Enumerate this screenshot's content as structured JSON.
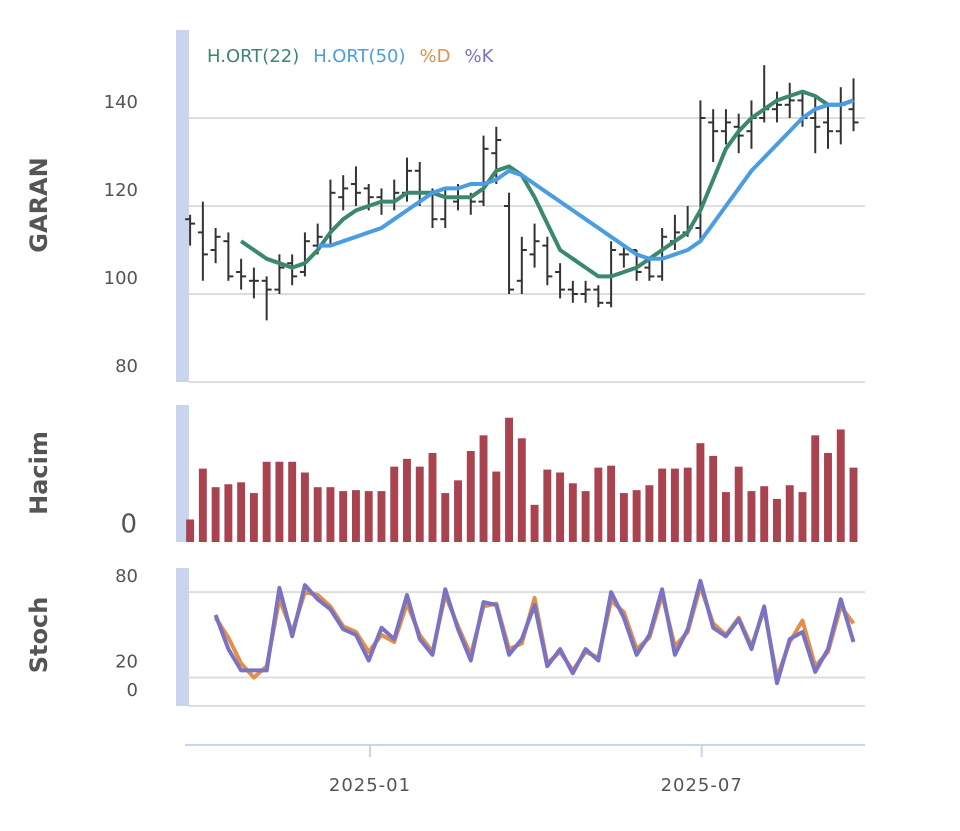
{
  "chart_data": [
    {
      "type": "ohlc",
      "ylabel": "GARAN",
      "color": "#333333",
      "xlim": [
        -0.4,
        52.9
      ],
      "ylim": [
        80,
        160
      ],
      "yticks": [
        80,
        100,
        120,
        140
      ],
      "grid": true,
      "open": [
        117,
        114,
        110,
        112,
        105,
        103,
        103,
        101,
        107,
        105,
        111,
        113,
        122,
        125,
        124,
        122,
        121,
        123,
        128,
        123,
        117,
        121,
        122,
        121,
        132,
        120,
        103,
        109,
        111,
        105,
        101,
        100,
        101,
        98,
        109,
        110,
        106,
        104,
        112,
        114,
        115,
        139,
        137,
        138,
        137,
        140,
        142,
        143,
        144,
        140,
        139,
        137,
        142
      ],
      "high": [
        118,
        121,
        115,
        114,
        108,
        106,
        104,
        109,
        109,
        114,
        116,
        126,
        127,
        129,
        125,
        124,
        126,
        131,
        130,
        124,
        124,
        125,
        123,
        136,
        138,
        123,
        113,
        116,
        113,
        107,
        103,
        103,
        102,
        112,
        111,
        110,
        108,
        115,
        118,
        120,
        144,
        142,
        142,
        141,
        144,
        152,
        146,
        148,
        146,
        145,
        143,
        147,
        149
      ],
      "low": [
        111,
        103,
        107,
        103,
        101,
        99,
        94,
        100,
        102,
        104,
        109,
        111,
        119,
        120,
        119,
        118,
        119,
        121,
        120,
        115,
        115,
        119,
        118,
        120,
        125,
        100,
        100,
        106,
        102,
        99,
        98,
        98,
        97,
        97,
        106,
        103,
        103,
        103,
        110,
        113,
        112,
        130,
        134,
        132,
        133,
        139,
        139,
        140,
        138,
        132,
        133,
        134,
        137
      ],
      "close": [
        116,
        109,
        113,
        104,
        104,
        103,
        101,
        106,
        104,
        112,
        113,
        123,
        124,
        123,
        122,
        121,
        123,
        128,
        123,
        117,
        122,
        122,
        121,
        133,
        135,
        101,
        110,
        112,
        104,
        101,
        100,
        101,
        98,
        110,
        109,
        105,
        104,
        113,
        114,
        115,
        140,
        137,
        139,
        136,
        140,
        142,
        143,
        144,
        140,
        138,
        137,
        143,
        139
      ],
      "series": [
        {
          "name": "H.ORT(22)",
          "color": "#3b8770",
          "values": [
            null,
            null,
            null,
            null,
            112,
            110,
            108,
            107,
            106,
            107,
            110,
            114,
            117,
            119,
            120,
            121,
            121,
            123,
            123,
            123,
            122,
            122,
            122,
            124,
            128,
            129,
            127,
            122,
            116,
            110,
            108,
            106,
            104,
            104,
            105,
            106,
            108,
            110,
            112,
            114,
            119,
            126,
            133,
            137,
            140,
            142,
            144,
            145,
            146,
            145,
            143,
            143,
            144
          ]
        },
        {
          "name": "H.ORT(50)",
          "color": "#4a9de0",
          "values": [
            null,
            null,
            null,
            null,
            null,
            null,
            null,
            null,
            null,
            null,
            111,
            111,
            112,
            113,
            114,
            115,
            117,
            119,
            121,
            123,
            124,
            124,
            125,
            125,
            126,
            128,
            127,
            125,
            123,
            121,
            119,
            117,
            115,
            113,
            111,
            109,
            108,
            108,
            109,
            110,
            112,
            116,
            120,
            124,
            128,
            131,
            134,
            137,
            140,
            142,
            143,
            143,
            144
          ]
        }
      ]
    },
    {
      "type": "bar",
      "ylabel": "Hacim",
      "color": "#a8434f",
      "xlim": [
        -0.4,
        52.9
      ],
      "ylim": [
        0,
        140
      ],
      "yticks": [
        0
      ],
      "values": [
        23,
        75,
        56,
        59,
        61,
        50,
        82,
        82,
        82,
        71,
        56,
        56,
        52,
        53,
        52,
        52,
        77,
        85,
        77,
        91,
        50,
        63,
        93,
        109,
        72,
        127,
        106,
        38,
        74,
        71,
        60,
        52,
        76,
        78,
        50,
        53,
        58,
        75,
        75,
        76,
        101,
        88,
        51,
        77,
        52,
        57,
        44,
        58,
        51,
        109,
        91,
        115,
        76
      ]
    },
    {
      "type": "line",
      "ylabel": "Stoch",
      "xlim": [
        -0.4,
        52.9
      ],
      "ylim": [
        0,
        97
      ],
      "yticks": [
        0,
        20,
        80
      ],
      "grid": true,
      "xticks": [
        {
          "value": 14.1,
          "label": "2025-01"
        },
        {
          "value": 40.1,
          "label": "2025-07"
        }
      ],
      "series": [
        {
          "name": "%D",
          "color": "#e0904a",
          "values": [
            null,
            null,
            62,
            48,
            30,
            20,
            28,
            75,
            52,
            80,
            78,
            70,
            56,
            52,
            38,
            50,
            45,
            72,
            50,
            38,
            78,
            56,
            36,
            70,
            72,
            40,
            44,
            76,
            30,
            38,
            25,
            38,
            34,
            74,
            66,
            40,
            48,
            78,
            42,
            52,
            84,
            58,
            50,
            62,
            42,
            68,
            20,
            45,
            60,
            28,
            38,
            70,
            58
          ]
        },
        {
          "name": "%K",
          "color": "#7a72c2",
          "values": [
            null,
            null,
            64,
            40,
            25,
            25,
            25,
            83,
            49,
            85,
            75,
            68,
            54,
            50,
            32,
            55,
            47,
            78,
            47,
            36,
            82,
            54,
            32,
            73,
            71,
            36,
            47,
            71,
            28,
            40,
            23,
            40,
            32,
            80,
            62,
            36,
            50,
            82,
            36,
            54,
            88,
            55,
            49,
            61,
            40,
            70,
            16,
            47,
            52,
            24,
            40,
            75,
            45
          ]
        }
      ]
    }
  ]
}
